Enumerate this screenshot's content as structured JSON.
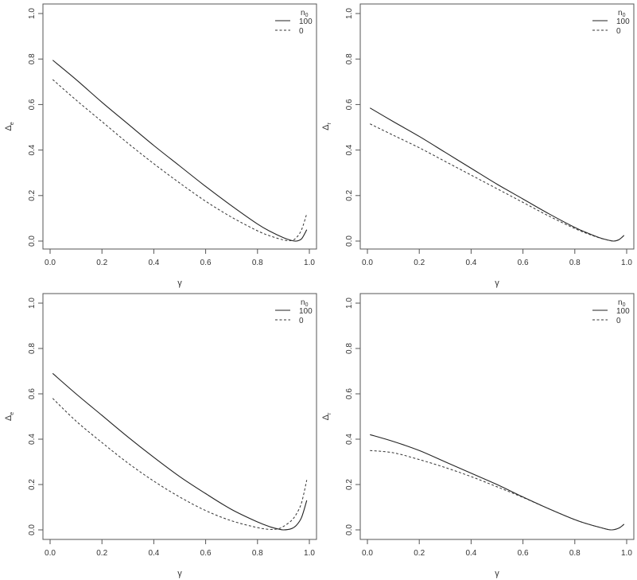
{
  "legend": {
    "title": "n",
    "title_sub": "0",
    "entries": [
      {
        "label": "100",
        "style": "solid"
      },
      {
        "label": "0",
        "style": "dashed"
      }
    ]
  },
  "panels": [
    {
      "id": "top-left",
      "ylabel": "Δ",
      "ylabel_sub": "e",
      "xlabel": "γ"
    },
    {
      "id": "top-right",
      "ylabel": "Δ",
      "ylabel_sub": "r",
      "xlabel": "γ"
    },
    {
      "id": "bottom-left",
      "ylabel": "Δ",
      "ylabel_sub": "e",
      "xlabel": "γ"
    },
    {
      "id": "bottom-right",
      "ylabel": "Δ",
      "ylabel_sub": "r",
      "xlabel": "γ"
    }
  ],
  "ticks": {
    "x": [
      "0.0",
      "0.2",
      "0.4",
      "0.6",
      "0.8",
      "1.0"
    ],
    "y": [
      "0.0",
      "0.2",
      "0.4",
      "0.6",
      "0.8",
      "1.0"
    ]
  },
  "chart_data": [
    {
      "type": "line",
      "title": "",
      "xlabel": "γ",
      "ylabel": "Δe",
      "xlim": [
        0,
        1
      ],
      "ylim": [
        0,
        1
      ],
      "grid": false,
      "legend_position": "top-right",
      "legend_title": "n0",
      "x": [
        0.01,
        0.1,
        0.2,
        0.3,
        0.4,
        0.5,
        0.6,
        0.7,
        0.8,
        0.85,
        0.9,
        0.93,
        0.95,
        0.97,
        0.99
      ],
      "series": [
        {
          "name": "100",
          "style": "solid",
          "values": [
            0.795,
            0.71,
            0.61,
            0.515,
            0.42,
            0.33,
            0.24,
            0.155,
            0.075,
            0.042,
            0.015,
            0.003,
            0.0,
            0.01,
            0.05
          ]
        },
        {
          "name": "0",
          "style": "dashed",
          "values": [
            0.71,
            0.62,
            0.525,
            0.43,
            0.34,
            0.255,
            0.175,
            0.105,
            0.045,
            0.022,
            0.005,
            0.002,
            0.015,
            0.05,
            0.12
          ]
        }
      ]
    },
    {
      "type": "line",
      "title": "",
      "xlabel": "γ",
      "ylabel": "Δr",
      "xlim": [
        0,
        1
      ],
      "ylim": [
        0,
        1
      ],
      "grid": false,
      "legend_position": "top-right",
      "legend_title": "n0",
      "x": [
        0.01,
        0.1,
        0.2,
        0.3,
        0.4,
        0.5,
        0.6,
        0.7,
        0.8,
        0.85,
        0.9,
        0.93,
        0.95,
        0.97,
        0.99
      ],
      "series": [
        {
          "name": "100",
          "style": "solid",
          "values": [
            0.585,
            0.525,
            0.46,
            0.39,
            0.32,
            0.25,
            0.185,
            0.12,
            0.06,
            0.035,
            0.013,
            0.004,
            0.0,
            0.006,
            0.025
          ]
        },
        {
          "name": "0",
          "style": "dashed",
          "values": [
            0.515,
            0.465,
            0.41,
            0.35,
            0.29,
            0.23,
            0.17,
            0.11,
            0.055,
            0.032,
            0.012,
            0.004,
            0.0,
            0.006,
            0.025
          ]
        }
      ]
    },
    {
      "type": "line",
      "title": "",
      "xlabel": "γ",
      "ylabel": "Δe",
      "xlim": [
        0,
        1
      ],
      "ylim": [
        0,
        1
      ],
      "grid": false,
      "legend_position": "top-right",
      "legend_title": "n0",
      "x": [
        0.01,
        0.1,
        0.2,
        0.3,
        0.4,
        0.5,
        0.6,
        0.7,
        0.8,
        0.85,
        0.88,
        0.9,
        0.93,
        0.95,
        0.97,
        0.99
      ],
      "series": [
        {
          "name": "100",
          "style": "solid",
          "values": [
            0.69,
            0.6,
            0.505,
            0.41,
            0.32,
            0.235,
            0.16,
            0.09,
            0.035,
            0.013,
            0.004,
            0.0,
            0.005,
            0.02,
            0.055,
            0.13
          ]
        },
        {
          "name": "0",
          "style": "dashed",
          "values": [
            0.58,
            0.48,
            0.385,
            0.295,
            0.215,
            0.145,
            0.085,
            0.04,
            0.01,
            0.002,
            0.005,
            0.015,
            0.04,
            0.07,
            0.12,
            0.22
          ]
        }
      ]
    },
    {
      "type": "line",
      "title": "",
      "xlabel": "γ",
      "ylabel": "Δr",
      "xlim": [
        0,
        1
      ],
      "ylim": [
        0,
        1
      ],
      "grid": false,
      "legend_position": "top-right",
      "legend_title": "n0",
      "x": [
        0.01,
        0.1,
        0.2,
        0.3,
        0.4,
        0.5,
        0.6,
        0.7,
        0.8,
        0.85,
        0.9,
        0.94,
        0.97,
        0.99
      ],
      "series": [
        {
          "name": "100",
          "style": "solid",
          "values": [
            0.42,
            0.39,
            0.35,
            0.3,
            0.25,
            0.2,
            0.145,
            0.093,
            0.045,
            0.026,
            0.01,
            0.0,
            0.008,
            0.025
          ]
        },
        {
          "name": "0",
          "style": "dashed",
          "values": [
            0.35,
            0.34,
            0.31,
            0.275,
            0.235,
            0.19,
            0.143,
            0.093,
            0.045,
            0.026,
            0.01,
            0.0,
            0.008,
            0.025
          ]
        }
      ]
    }
  ]
}
